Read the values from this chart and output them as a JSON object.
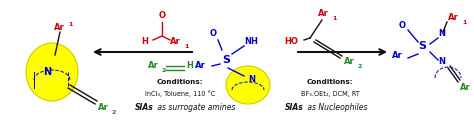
{
  "background_color": "#ffffff",
  "fig_width": 4.74,
  "fig_height": 1.32,
  "dpi": 100,
  "left_conditions_title": "Conditions:",
  "left_conditions_line1": "InCl₃, Toluene, 110 °C",
  "left_sia_bold": "SIAs",
  "left_sia_normal": " as surrogate amines",
  "right_conditions_title": "Conditions:",
  "right_conditions_line1": "BF₃.OEt₂, DCM, RT",
  "right_sia_bold": "SIAs",
  "right_sia_normal": " as Nucleophiles",
  "ar1_color": "#cc0000",
  "ar2_color": "#228822",
  "struct_color": "#0000cc",
  "yellow_color": "#ffff00",
  "yellow_edge": "#cccc00",
  "red_color": "#cc0000",
  "green_color": "#228822",
  "black_color": "#111111"
}
